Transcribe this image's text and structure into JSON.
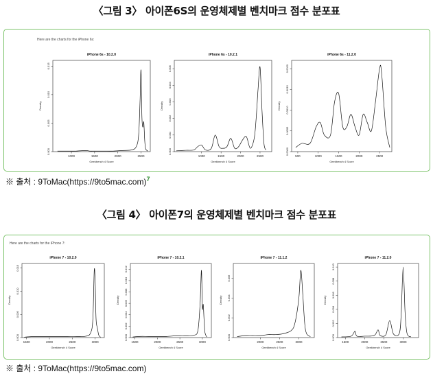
{
  "figure3": {
    "title": "〈그림 3〉 아이폰6S의 운영체제별 벤치마크 점수 분포표",
    "intro": "Here are the charts for the iPhone 6s:",
    "source": "※ 출처 : 9ToMac(https://9to5mac.com)",
    "source_mark": "7"
  },
  "figure4": {
    "title": "〈그림 4〉 아이폰7의 운영체제별 벤치마크 점수 분포표",
    "intro": "Here are the charts for the iPhone 7:",
    "source": "※ 출처 : 9ToMac(https://9to5mac.com)"
  },
  "chart_data": [
    {
      "type": "line",
      "title": "iPhone 6s - 10.2.0",
      "xlabel": "Geekbench 4 Score",
      "ylabel": "Density",
      "xlim": [
        600,
        2700
      ],
      "ylim": [
        0,
        0.016
      ],
      "xticks": [
        1000,
        1500,
        2000,
        2500
      ],
      "yticks": [
        0.0,
        0.005,
        0.01,
        0.015
      ],
      "ytick_labels": [
        "0.000",
        "0.005",
        "0.010",
        "0.015"
      ],
      "x": [
        700,
        900,
        1100,
        1300,
        1400,
        1500,
        1700,
        1900,
        2100,
        2300,
        2400,
        2450,
        2480,
        2500,
        2520,
        2540,
        2560,
        2580,
        2600,
        2650
      ],
      "y": [
        0.0001,
        0.0001,
        0.0001,
        0.0002,
        0.0001,
        0.0001,
        0.0001,
        0.0001,
        0.0002,
        0.0003,
        0.0009,
        0.003,
        0.009,
        0.0143,
        0.006,
        0.0043,
        0.0052,
        0.002,
        0.0005,
        0.0001
      ]
    },
    {
      "type": "line",
      "title": "iPhone 6s - 10.2.1",
      "xlabel": "Geekbench 4 Score",
      "ylabel": "Density",
      "xlim": [
        300,
        2800
      ],
      "ylim": [
        0,
        0.0055
      ],
      "xticks": [
        1000,
        1500,
        2000,
        2500
      ],
      "yticks": [
        0.0,
        0.001,
        0.002,
        0.003,
        0.004,
        0.005
      ],
      "ytick_labels": [
        "0.000",
        "0.001",
        "0.002",
        "0.003",
        "0.004",
        "0.005"
      ],
      "x": [
        350,
        600,
        800,
        900,
        1000,
        1100,
        1250,
        1350,
        1450,
        1550,
        1650,
        1750,
        1850,
        1950,
        2050,
        2150,
        2250,
        2350,
        2400,
        2450,
        2500,
        2550,
        2600,
        2650
      ],
      "y": [
        5e-05,
        8e-05,
        0.0001,
        0.0003,
        0.0004,
        0.0001,
        0.0002,
        0.001,
        0.0003,
        0.0002,
        0.0003,
        0.0008,
        0.0002,
        0.0003,
        0.0007,
        0.0009,
        0.0002,
        0.0008,
        0.002,
        0.0038,
        0.0051,
        0.0025,
        0.0005,
        0.0001
      ]
    },
    {
      "type": "line",
      "title": "iPhone 6s - 11.2.0",
      "xlabel": "Geekbench 4 Score",
      "ylabel": "Density",
      "xlim": [
        350,
        2800
      ],
      "ylim": [
        0,
        0.0022
      ],
      "xticks": [
        500,
        1000,
        1500,
        2000,
        2500
      ],
      "yticks": [
        0.0,
        0.0005,
        0.001,
        0.0015,
        0.002
      ],
      "ytick_labels": [
        "0.0000",
        "0.0005",
        "0.0010",
        "0.0015",
        "0.0020"
      ],
      "x": [
        450,
        600,
        800,
        950,
        1050,
        1150,
        1300,
        1400,
        1500,
        1600,
        1700,
        1800,
        1900,
        2000,
        2100,
        2200,
        2300,
        2400,
        2500,
        2550,
        2650,
        2750
      ],
      "y": [
        0.0001,
        0.0002,
        0.0002,
        0.0006,
        0.0007,
        0.0004,
        0.0004,
        0.0012,
        0.0014,
        0.0006,
        0.0006,
        0.0009,
        0.0006,
        0.0004,
        0.0009,
        0.0007,
        0.0005,
        0.0012,
        0.002,
        0.0019,
        0.0006,
        0.0001
      ]
    },
    {
      "type": "line",
      "title": "iPhone 7 - 10.2.0",
      "xlabel": "Geekbench 4 Score",
      "ylabel": "Density",
      "xlim": [
        1400,
        3200
      ],
      "ylim": [
        0,
        0.016
      ],
      "xticks": [
        1500,
        2000,
        2500,
        3000
      ],
      "yticks": [
        0.0,
        0.005,
        0.01,
        0.015
      ],
      "ytick_labels": [
        "0.000",
        "0.005",
        "0.010",
        "0.015"
      ],
      "x": [
        1450,
        1600,
        1800,
        2000,
        2200,
        2400,
        2600,
        2800,
        2900,
        2950,
        2980,
        3000,
        3020,
        3050,
        3080,
        3120
      ],
      "y": [
        0.0001,
        0.0002,
        0.0002,
        0.0002,
        0.0002,
        0.0002,
        0.0002,
        0.0003,
        0.001,
        0.004,
        0.0145,
        0.012,
        0.004,
        0.002,
        0.0005,
        0.0001
      ]
    },
    {
      "type": "line",
      "title": "iPhone 7 - 10.2.1",
      "xlabel": "Geekbench 4 Score",
      "ylabel": "Density",
      "xlim": [
        1400,
        3200
      ],
      "ylim": [
        0,
        0.013
      ],
      "xticks": [
        1500,
        2000,
        2500,
        3000
      ],
      "yticks": [
        0.0,
        0.002,
        0.004,
        0.006,
        0.008,
        0.01,
        0.012
      ],
      "ytick_labels": [
        "0.000",
        "0.002",
        "0.004",
        "0.006",
        "0.008",
        "0.010",
        "0.012"
      ],
      "x": [
        1450,
        1600,
        1800,
        2000,
        2200,
        2400,
        2600,
        2800,
        2900,
        2950,
        2980,
        3000,
        3020,
        3040,
        3060,
        3100
      ],
      "y": [
        0.0001,
        0.0002,
        0.0002,
        0.0002,
        0.0002,
        0.0003,
        0.0003,
        0.0004,
        0.0012,
        0.006,
        0.0118,
        0.0052,
        0.0058,
        0.0028,
        0.0008,
        0.0001
      ]
    },
    {
      "type": "line",
      "title": "iPhone 7 - 11.1.2",
      "xlabel": "Geekbench 4 Score",
      "ylabel": "Density",
      "xlim": [
        1300,
        3400
      ],
      "ylim": [
        0,
        0.0075
      ],
      "xticks": [
        2000,
        2500,
        3000
      ],
      "yticks": [
        0.0,
        0.002,
        0.004,
        0.006
      ],
      "ytick_labels": [
        "0.000",
        "0.002",
        "0.004",
        "0.006"
      ],
      "x": [
        1400,
        1600,
        1800,
        2000,
        2200,
        2400,
        2600,
        2800,
        2900,
        3000,
        3050,
        3100,
        3150,
        3200,
        3300
      ],
      "y": [
        0.0001,
        0.0002,
        0.0002,
        0.0002,
        0.0003,
        0.0003,
        0.0004,
        0.0007,
        0.0015,
        0.004,
        0.0068,
        0.0045,
        0.0015,
        0.0004,
        0.0001
      ]
    },
    {
      "type": "line",
      "title": "iPhone 7 - 11.2.0",
      "xlabel": "Geekbench 4 Score",
      "ylabel": "Density",
      "xlim": [
        1300,
        3400
      ],
      "ylim": [
        0,
        0.0105
      ],
      "xticks": [
        1500,
        2000,
        2500,
        3000
      ],
      "yticks": [
        0.0,
        0.002,
        0.004,
        0.006,
        0.008,
        0.01
      ],
      "ytick_labels": [
        "0.000",
        "0.002",
        "0.004",
        "0.006",
        "0.008",
        "0.010"
      ],
      "x": [
        1400,
        1650,
        1750,
        1800,
        2000,
        2250,
        2350,
        2400,
        2550,
        2650,
        2750,
        2900,
        2950,
        3000,
        3050,
        3100,
        3200
      ],
      "y": [
        0.0001,
        0.0002,
        0.0009,
        0.0002,
        0.0002,
        0.0003,
        0.0011,
        0.0003,
        0.0004,
        0.0024,
        0.0005,
        0.0006,
        0.0035,
        0.01,
        0.0035,
        0.0006,
        0.0001
      ]
    }
  ]
}
